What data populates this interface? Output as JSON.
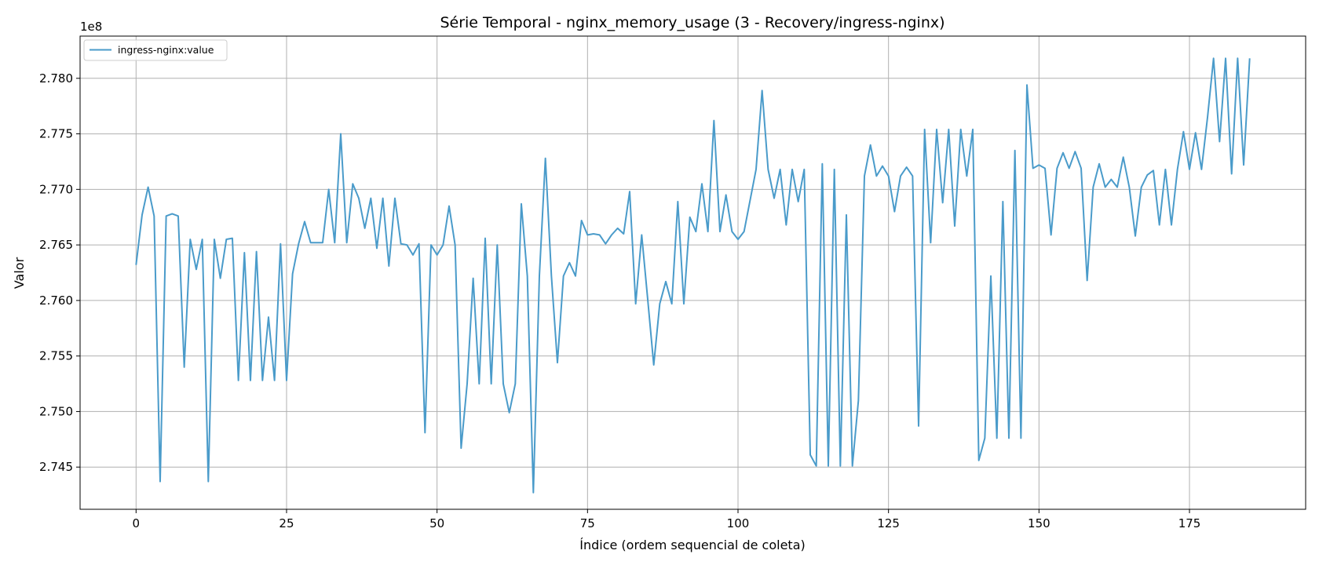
{
  "chart_data": {
    "type": "line",
    "title": "Série Temporal - nginx_memory_usage (3 - Recovery/ingress-nginx)",
    "xlabel": "Índice (ordem sequencial de coleta)",
    "ylabel": "Valor",
    "y_offset_label": "1e8",
    "xlim": [
      -9.3,
      194.3
    ],
    "ylim": [
      2.7412,
      2.7838
    ],
    "x_ticks": [
      0,
      25,
      50,
      75,
      100,
      125,
      150,
      175
    ],
    "y_ticks": [
      2.745,
      2.75,
      2.755,
      2.76,
      2.765,
      2.77,
      2.775,
      2.78
    ],
    "y_tick_labels": [
      "2.745",
      "2.750",
      "2.755",
      "2.760",
      "2.765",
      "2.770",
      "2.775",
      "2.780"
    ],
    "grid": true,
    "legend_position": "top-left",
    "colors": {
      "series": "#4a9bca",
      "grid": "#b0b0b0"
    },
    "series": [
      {
        "name": "ingress-nginx:value",
        "x_start": 0,
        "values": [
          2.7632,
          2.7677,
          2.7702,
          2.7676,
          2.7437,
          2.7676,
          2.7678,
          2.7676,
          2.754,
          2.7655,
          2.7628,
          2.7655,
          2.7437,
          2.7655,
          2.762,
          2.7655,
          2.7656,
          2.7528,
          2.7643,
          2.7528,
          2.7644,
          2.7528,
          2.7585,
          2.7528,
          2.7651,
          2.7528,
          2.7624,
          2.7651,
          2.7671,
          2.7652,
          2.7652,
          2.7652,
          2.77,
          2.7652,
          2.775,
          2.7652,
          2.7705,
          2.7692,
          2.7665,
          2.7692,
          2.7647,
          2.7692,
          2.7631,
          2.7692,
          2.7651,
          2.765,
          2.7641,
          2.7651,
          2.7481,
          2.765,
          2.7641,
          2.765,
          2.7685,
          2.765,
          2.7467,
          2.7525,
          2.762,
          2.7525,
          2.7656,
          2.7525,
          2.765,
          2.7525,
          2.7499,
          2.7525,
          2.7687,
          2.7622,
          2.7427,
          2.7622,
          2.7728,
          2.7622,
          2.7544,
          2.7622,
          2.7634,
          2.7622,
          2.7672,
          2.7659,
          2.766,
          2.7659,
          2.7651,
          2.7659,
          2.7665,
          2.766,
          2.7698,
          2.7597,
          2.7659,
          2.7601,
          2.7542,
          2.7597,
          2.7617,
          2.7597,
          2.7689,
          2.7597,
          2.7675,
          2.7662,
          2.7705,
          2.7662,
          2.7762,
          2.7662,
          2.7695,
          2.7662,
          2.7655,
          2.7662,
          2.769,
          2.7718,
          2.7789,
          2.7718,
          2.7692,
          2.7718,
          2.7668,
          2.7718,
          2.7689,
          2.7718,
          2.7461,
          2.7451,
          2.7723,
          2.7451,
          2.7718,
          2.7451,
          2.7677,
          2.7451,
          2.751,
          2.7712,
          2.774,
          2.7712,
          2.7721,
          2.7712,
          2.768,
          2.7712,
          2.772,
          2.7712,
          2.7487,
          2.7754,
          2.7652,
          2.7754,
          2.7688,
          2.7754,
          2.7667,
          2.7754,
          2.7712,
          2.7754,
          2.7456,
          2.7476,
          2.7622,
          2.7476,
          2.7689,
          2.7476,
          2.7735,
          2.7476,
          2.7794,
          2.7719,
          2.7722,
          2.7719,
          2.7659,
          2.7719,
          2.7733,
          2.7719,
          2.7734,
          2.7719,
          2.7618,
          2.7702,
          2.7723,
          2.7702,
          2.7709,
          2.7702,
          2.7729,
          2.7702,
          2.7658,
          2.7702,
          2.7713,
          2.7717,
          2.7668,
          2.7718,
          2.7668,
          2.7718,
          2.7752,
          2.7718,
          2.7751,
          2.7718,
          2.7765,
          2.7818,
          2.7743,
          2.7818,
          2.7714,
          2.7818,
          2.7722,
          2.7818
        ]
      }
    ]
  }
}
